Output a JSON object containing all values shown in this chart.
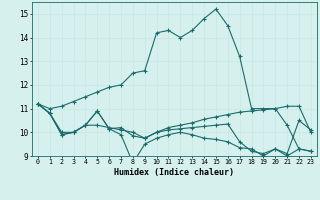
{
  "xlabel": "Humidex (Indice chaleur)",
  "xlim": [
    -0.5,
    23.5
  ],
  "ylim": [
    9,
    15.5
  ],
  "yticks": [
    9,
    10,
    11,
    12,
    13,
    14,
    15
  ],
  "xticks": [
    0,
    1,
    2,
    3,
    4,
    5,
    6,
    7,
    8,
    9,
    10,
    11,
    12,
    13,
    14,
    15,
    16,
    17,
    18,
    19,
    20,
    21,
    22,
    23
  ],
  "bg_color": "#d6f0ee",
  "line_color": "#1a6b6b",
  "grid_color": "#c8e8e6",
  "curves": [
    [
      11.2,
      11.0,
      11.1,
      11.3,
      11.5,
      11.7,
      11.9,
      12.0,
      12.5,
      12.6,
      14.2,
      14.3,
      14.0,
      14.3,
      14.8,
      15.2,
      14.5,
      13.2,
      11.0,
      11.0,
      11.0,
      11.1,
      11.1,
      10.0
    ],
    [
      11.2,
      10.8,
      10.0,
      10.0,
      10.3,
      10.3,
      10.2,
      10.1,
      10.0,
      9.75,
      10.0,
      10.2,
      10.3,
      10.4,
      10.55,
      10.65,
      10.75,
      10.85,
      10.9,
      10.95,
      11.0,
      10.3,
      9.3,
      9.2
    ],
    [
      11.2,
      10.8,
      9.9,
      10.0,
      10.3,
      10.9,
      10.15,
      9.9,
      8.7,
      9.5,
      9.75,
      9.9,
      10.0,
      9.9,
      9.75,
      9.7,
      9.6,
      9.35,
      9.3,
      9.0,
      9.3,
      9.0,
      9.3,
      9.2
    ],
    [
      11.2,
      10.8,
      9.9,
      10.0,
      10.3,
      10.9,
      10.15,
      10.2,
      9.85,
      9.75,
      10.0,
      10.1,
      10.15,
      10.2,
      10.25,
      10.3,
      10.35,
      9.6,
      9.2,
      9.1,
      9.3,
      9.1,
      10.5,
      10.1
    ]
  ]
}
